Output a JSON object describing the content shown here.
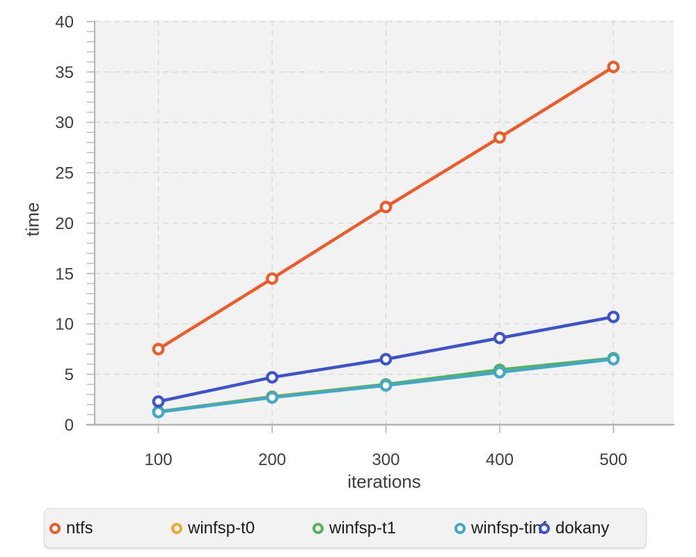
{
  "chart_data": {
    "type": "line",
    "title": "",
    "xlabel": "iterations",
    "ylabel": "time",
    "x": [
      100,
      200,
      300,
      400,
      500
    ],
    "x_ticks": [
      "100",
      "200",
      "300",
      "400",
      "500"
    ],
    "y_ticks": [
      "0",
      "5",
      "10",
      "15",
      "20",
      "25",
      "30",
      "35",
      "40"
    ],
    "xlim": [
      44,
      553
    ],
    "ylim": [
      0,
      40.1
    ],
    "y_major_step": 5,
    "y_minor_step": 1,
    "grid": "dashed-major-both-axes",
    "legend_position": "bottom",
    "series": [
      {
        "name": "ntfs",
        "color": "#EF5A28",
        "values": [
          7.5,
          14.5,
          21.6,
          28.5,
          35.5
        ]
      },
      {
        "name": "winfsp-t0",
        "color": "#F2A52F",
        "values": [
          1.3,
          2.8,
          4.0,
          5.4,
          6.55
        ]
      },
      {
        "name": "winfsp-t1",
        "color": "#58B158",
        "values": [
          1.3,
          2.75,
          4.0,
          5.45,
          6.6
        ]
      },
      {
        "name": "winfsp-tinf",
        "color": "#3FA9C7",
        "values": [
          1.25,
          2.7,
          3.9,
          5.2,
          6.5
        ]
      },
      {
        "name": "dokany",
        "color": "#3C52CE",
        "values": [
          2.3,
          4.7,
          6.5,
          8.6,
          10.7
        ]
      }
    ],
    "style": {
      "plot_bg": "#F2F2F2",
      "grid_color": "#DBDBDB",
      "axis_color": "#B3B3B3",
      "tick_color": "#C2C2C2",
      "text_color": "#3E3E3E",
      "legend_bg": "#F2F2F2",
      "legend_border": "#D8D8D8",
      "legend_text": "#1C1C1C"
    }
  }
}
